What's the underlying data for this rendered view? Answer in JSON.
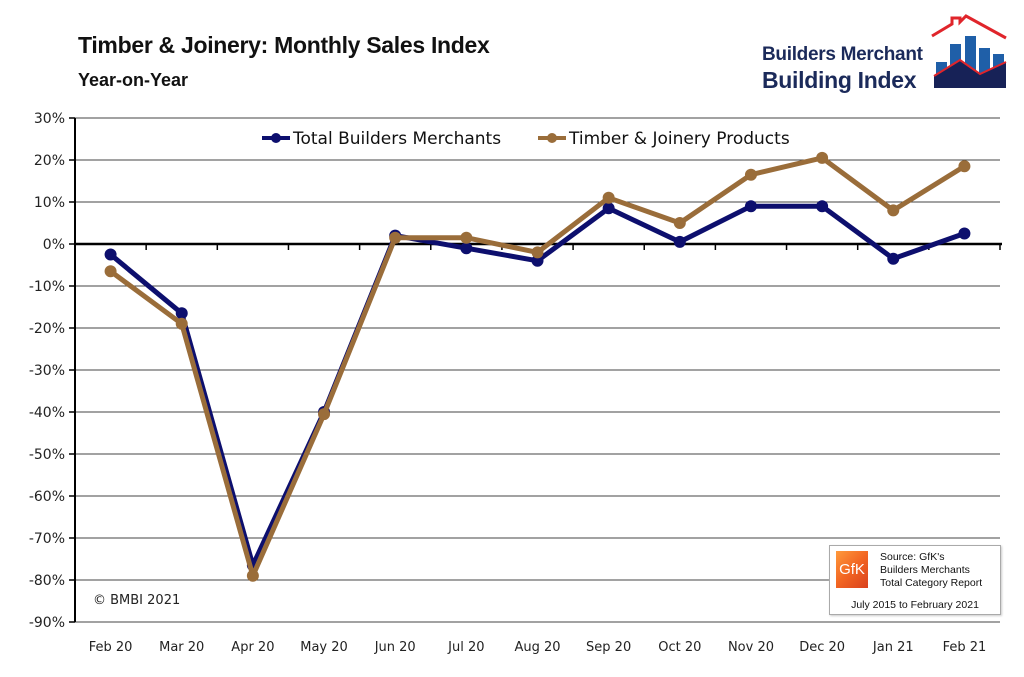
{
  "header": {
    "title": "Timber & Joinery: Monthly Sales Index",
    "subtitle": "Year-on-Year"
  },
  "logo": {
    "line1": "Builders Merchant",
    "line2": "Building Index",
    "icon": "house-bar-chart-logo"
  },
  "source_box": {
    "logo_text": "GfK",
    "lines": [
      "Source: GfK's",
      "Builders Merchants",
      "Total Category Report"
    ],
    "date_range": "July 2015 to February 2021"
  },
  "copyright": "© BMBI 2021",
  "colors": {
    "total": "#0d0f6e",
    "timber": "#9a6d3a",
    "grid": "#444444",
    "axis": "#000000"
  },
  "chart_data": {
    "type": "line",
    "title": "Timber & Joinery: Monthly Sales Index",
    "subtitle": "Year-on-Year",
    "xlabel": "",
    "ylabel": "",
    "categories": [
      "Feb 20",
      "Mar 20",
      "Apr 20",
      "May 20",
      "Jun 20",
      "Jul 20",
      "Aug 20",
      "Sep 20",
      "Oct 20",
      "Nov 20",
      "Dec 20",
      "Jan 21",
      "Feb 21"
    ],
    "y_ticks": [
      "30%",
      "20%",
      "10%",
      "0%",
      "-10%",
      "-20%",
      "-30%",
      "-40%",
      "-50%",
      "-60%",
      "-70%",
      "-80%",
      "-90%"
    ],
    "ylim": [
      -90,
      30
    ],
    "y_step": 10,
    "grid": true,
    "legend_position": "top",
    "series": [
      {
        "name": "Total Builders Merchants",
        "color": "#0d0f6e",
        "values": [
          -2.5,
          -16.5,
          -76.5,
          -40,
          2,
          -1,
          -4,
          8.5,
          0.5,
          9,
          9,
          -3.5,
          2.5
        ]
      },
      {
        "name": "Timber & Joinery Products",
        "color": "#9a6d3a",
        "values": [
          -6.5,
          -19,
          -79,
          -40.5,
          1.5,
          1.5,
          -2,
          11,
          5,
          16.5,
          20.5,
          8,
          18.5
        ]
      }
    ]
  }
}
